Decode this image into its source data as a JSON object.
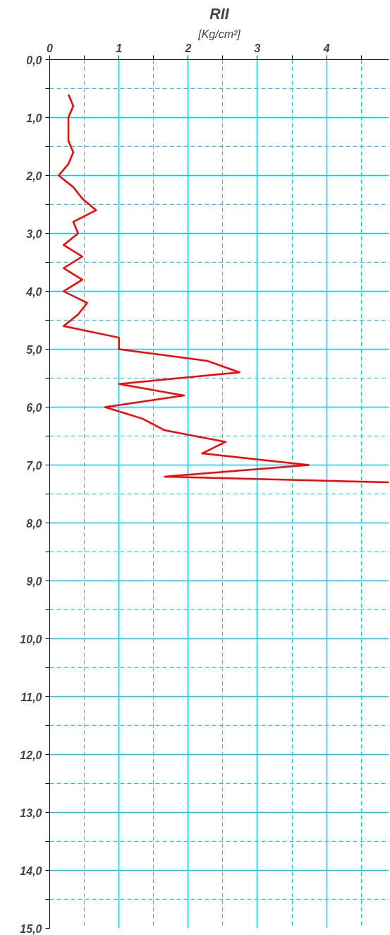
{
  "chart_data": {
    "type": "line",
    "title": "RII",
    "xlabel": "[Kg/cm²]",
    "xlim": [
      0,
      4.9
    ],
    "ylim": [
      15,
      0
    ],
    "xticks": [
      0,
      {
        "value": 0.5,
        "label": null
      },
      1,
      {
        "value": 1.5,
        "label": null
      },
      2,
      {
        "value": 2.5,
        "label": null
      },
      3,
      {
        "value": 3.5,
        "label": null
      },
      4,
      {
        "value": 4.5,
        "label": null
      }
    ],
    "yticks": [
      {
        "value": 0,
        "label": "0,0"
      },
      {
        "value": 0.5,
        "label": null
      },
      {
        "value": 1,
        "label": "1,0"
      },
      {
        "value": 1.5,
        "label": null
      },
      {
        "value": 2,
        "label": "2,0"
      },
      {
        "value": 2.5,
        "label": null
      },
      {
        "value": 3,
        "label": "3,0"
      },
      {
        "value": 3.5,
        "label": null
      },
      {
        "value": 4,
        "label": "4,0"
      },
      {
        "value": 4.5,
        "label": null
      },
      {
        "value": 5,
        "label": "5,0"
      },
      {
        "value": 5.5,
        "label": null
      },
      {
        "value": 6,
        "label": "6,0"
      },
      {
        "value": 6.5,
        "label": null
      },
      {
        "value": 7,
        "label": "7,0"
      },
      {
        "value": 7.5,
        "label": null
      },
      {
        "value": 8,
        "label": "8,0"
      },
      {
        "value": 8.5,
        "label": null
      },
      {
        "value": 9,
        "label": "9,0"
      },
      {
        "value": 9.5,
        "label": null
      },
      {
        "value": 10,
        "label": "10,0"
      },
      {
        "value": 10.5,
        "label": null
      },
      {
        "value": 11,
        "label": "11,0"
      },
      {
        "value": 11.5,
        "label": null
      },
      {
        "value": 12,
        "label": "12,0"
      },
      {
        "value": 12.5,
        "label": null
      },
      {
        "value": 13,
        "label": "13,0"
      },
      {
        "value": 13.5,
        "label": null
      },
      {
        "value": 14,
        "label": "14,0"
      },
      {
        "value": 14.5,
        "label": null
      },
      {
        "value": 15,
        "label": "15,0"
      }
    ],
    "grid": true,
    "marker": "none",
    "line_style": "solid",
    "series": [
      {
        "color": "#ff0000",
        "x": [
          0.27,
          0.34,
          0.27,
          0.27,
          0.34,
          0.27,
          0.13,
          0.34,
          0.47,
          0.67,
          0.34,
          0.41,
          0.2,
          0.47,
          0.2,
          0.47,
          0.2,
          0.54,
          0.41,
          0.2,
          1.0,
          1.0,
          2.27,
          2.74,
          1.0,
          1.94,
          0.8,
          1.34,
          1.66,
          2.54,
          2.2,
          3.74,
          1.66,
          4.9
        ],
        "values": [
          0.6,
          0.8,
          1.0,
          1.4,
          1.6,
          1.8,
          2.0,
          2.2,
          2.4,
          2.6,
          2.8,
          3.0,
          3.2,
          3.4,
          3.6,
          3.8,
          4.0,
          4.2,
          4.4,
          4.6,
          4.8,
          5.0,
          5.2,
          5.4,
          5.6,
          5.8,
          6.0,
          6.2,
          6.4,
          6.6,
          6.8,
          7.0,
          7.2,
          7.3
        ]
      }
    ]
  }
}
